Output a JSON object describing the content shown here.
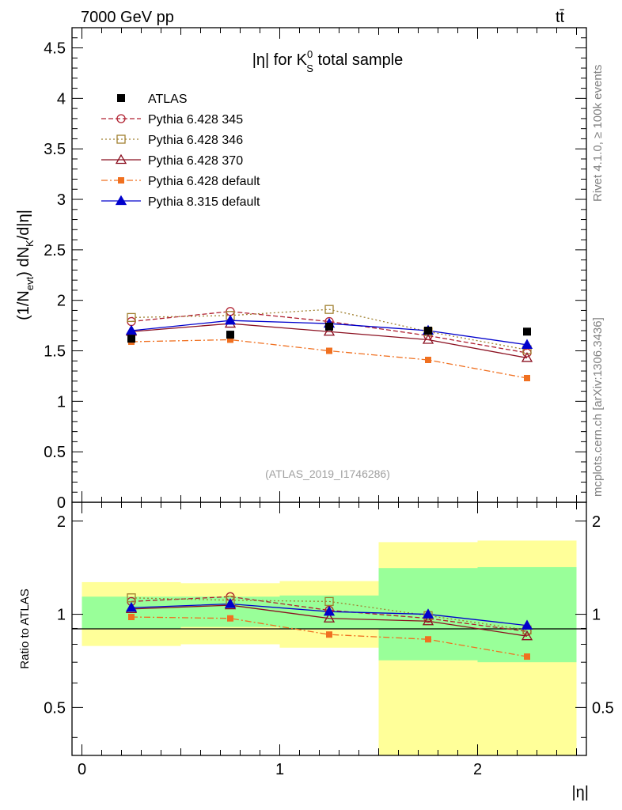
{
  "header": {
    "energy_label": "7000 GeV pp",
    "process_label": "tt̄",
    "rivet_label": "Rivet 4.1.0, ≥ 100k events",
    "mcplots_label": "mcplots.cern.ch [arXiv:1306.3436]",
    "analysis_id": "(ATLAS_2019_I1746286)"
  },
  "chart_data": [
    {
      "type": "line",
      "title": "|η| for K",
      "title_sup": "0",
      "title_sub": "S",
      "title_suffix": " total sample",
      "ylabel_parts": {
        "a": "(1/N",
        "b": "evt",
        "c": ") dN",
        "d": "K",
        "e": "/d|η|"
      },
      "ylim": [
        0,
        4.7
      ],
      "xlim": [
        -0.05,
        2.55
      ],
      "yticks": [
        0,
        0.5,
        1,
        1.5,
        2,
        2.5,
        3,
        3.5,
        4,
        4.5
      ],
      "ytick_labels": [
        "0",
        "0.5",
        "1",
        "1.5",
        "2",
        "2.5",
        "3",
        "3.5",
        "4",
        "4.5"
      ],
      "x": [
        0.25,
        0.75,
        1.25,
        1.75,
        2.25
      ],
      "data": {
        "name": "ATLAS",
        "values": [
          1.62,
          1.66,
          1.74,
          1.7,
          1.69
        ]
      },
      "series": [
        {
          "name": "Pythia 6.428 345",
          "color": "#b02030",
          "dash": "6,3",
          "marker": "circle-open",
          "values": [
            1.79,
            1.89,
            1.79,
            1.65,
            1.48
          ]
        },
        {
          "name": "Pythia 6.428 346",
          "color": "#a08030",
          "dash": "2,3",
          "marker": "square-open",
          "values": [
            1.83,
            1.85,
            1.91,
            1.69,
            1.51
          ]
        },
        {
          "name": "Pythia 6.428 370",
          "color": "#8b1020",
          "dash": "",
          "marker": "triangle-open",
          "values": [
            1.69,
            1.77,
            1.69,
            1.61,
            1.43
          ]
        },
        {
          "name": "Pythia 6.428 default",
          "color": "#f07020",
          "dash": "8,3,2,3",
          "marker": "square-filled",
          "values": [
            1.59,
            1.61,
            1.5,
            1.41,
            1.23
          ]
        },
        {
          "name": "Pythia 8.315 default",
          "color": "#0000cc",
          "dash": "",
          "marker": "triangle-filled",
          "values": [
            1.7,
            1.8,
            1.77,
            1.7,
            1.56
          ]
        }
      ]
    },
    {
      "type": "line",
      "ylabel": "Ratio to ATLAS",
      "xlabel": "|η|",
      "ylim": [
        0.35,
        2.3
      ],
      "xlim": [
        -0.05,
        2.55
      ],
      "yticks_major": [
        0.5,
        1,
        2
      ],
      "ytick_labels": [
        "0.5",
        "1",
        "2"
      ],
      "xticks_major": [
        0,
        1,
        2
      ],
      "xtick_labels": [
        "0",
        "1",
        "2"
      ],
      "bins": [
        [
          0,
          0.5
        ],
        [
          0.5,
          1
        ],
        [
          1,
          1.5
        ],
        [
          1.5,
          2
        ],
        [
          2,
          2.5
        ]
      ],
      "band_yellow": [
        [
          0.79,
          1.27
        ],
        [
          0.8,
          1.26
        ],
        [
          0.78,
          1.28
        ],
        [
          0.35,
          1.71
        ],
        [
          0.35,
          1.73
        ]
      ],
      "band_green": [
        [
          0.9,
          1.14
        ],
        [
          0.91,
          1.14
        ],
        [
          0.9,
          1.15
        ],
        [
          0.71,
          1.41
        ],
        [
          0.7,
          1.42
        ]
      ],
      "x": [
        0.25,
        0.75,
        1.25,
        1.75,
        2.25
      ],
      "series": [
        {
          "name": "Pythia 6.428 345",
          "values": [
            1.1,
            1.14,
            1.03,
            0.97,
            0.88
          ]
        },
        {
          "name": "Pythia 6.428 346",
          "values": [
            1.13,
            1.11,
            1.1,
            0.99,
            0.89
          ]
        },
        {
          "name": "Pythia 6.428 370",
          "values": [
            1.04,
            1.07,
            0.97,
            0.95,
            0.85
          ]
        },
        {
          "name": "Pythia 6.428 default",
          "values": [
            0.98,
            0.97,
            0.86,
            0.83,
            0.73
          ]
        },
        {
          "name": "Pythia 8.315 default",
          "values": [
            1.05,
            1.08,
            1.02,
            1.0,
            0.92
          ]
        }
      ]
    }
  ]
}
